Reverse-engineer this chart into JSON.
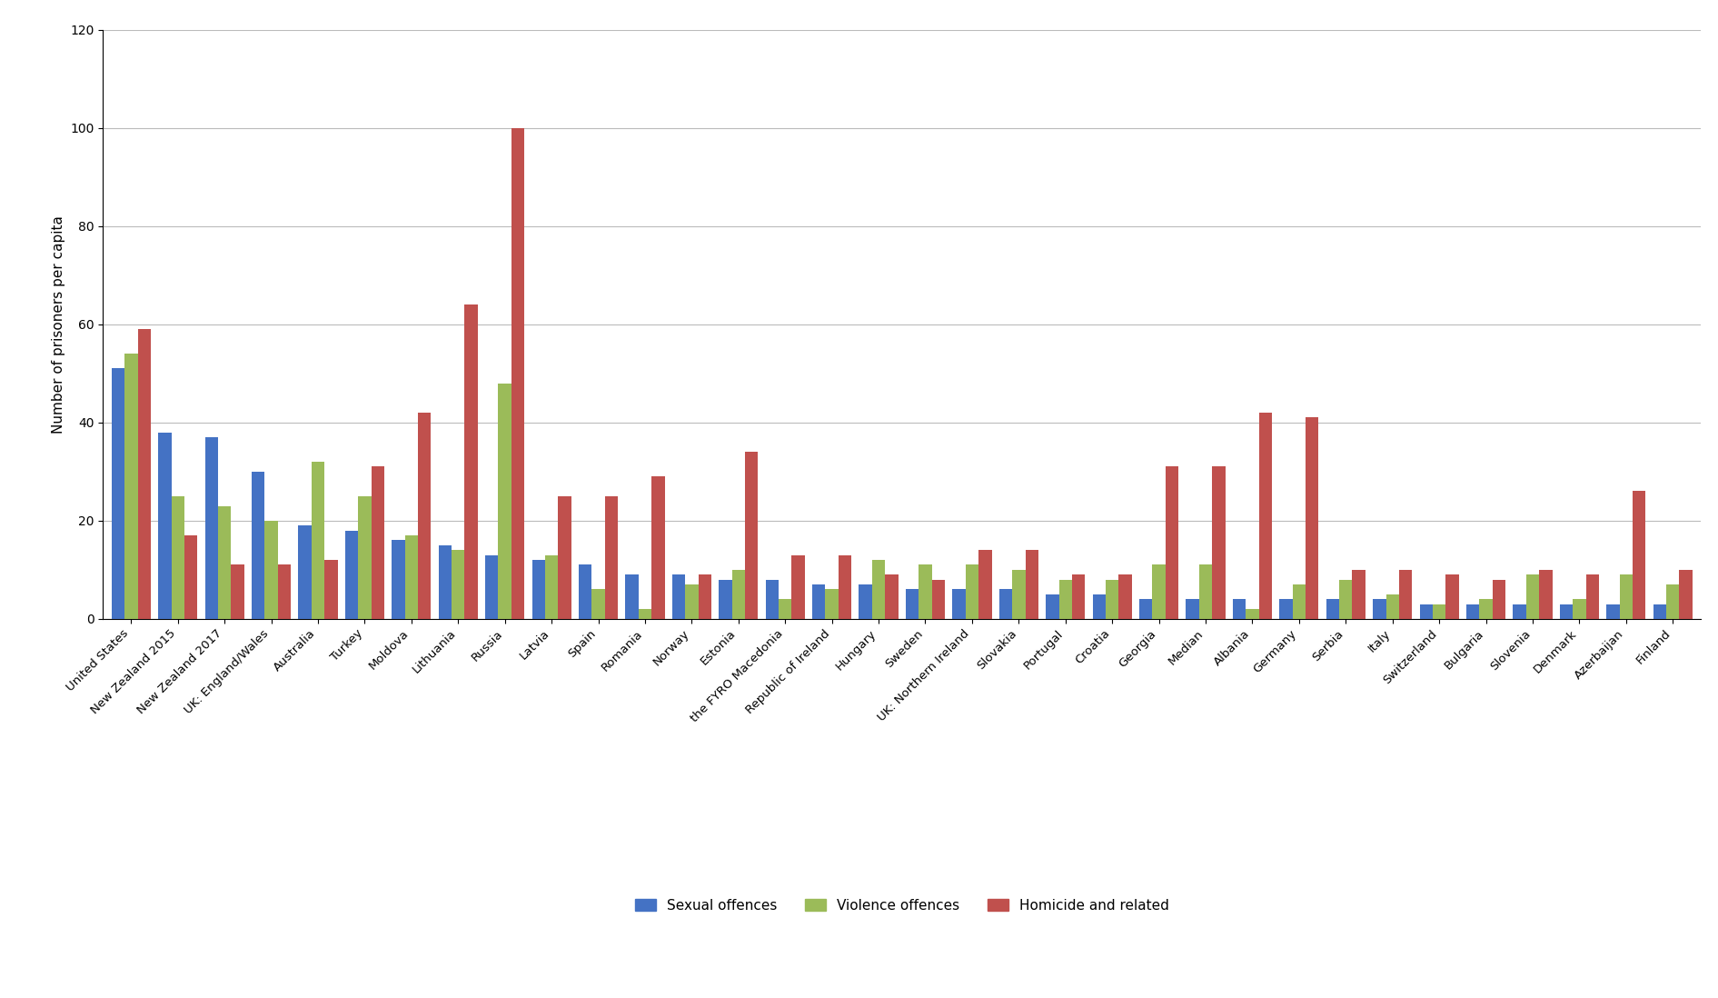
{
  "categories": [
    "United States",
    "New Zealand 2015",
    "New Zealand 2017",
    "UK: England/Wales",
    "Australia",
    "Turkey",
    "Moldova",
    "Lithuania",
    "Russia",
    "Latvia",
    "Spain",
    "Romania",
    "Norway",
    "Estonia",
    "the FYRO Macedonia",
    "Republic of Ireland",
    "Hungary",
    "Sweden",
    "UK: Northern Ireland",
    "Slovakia",
    "Portugal",
    "Croatia",
    "Georgia",
    "Median",
    "Albania",
    "Germany",
    "Serbia",
    "Italy",
    "Switzerland",
    "Bulgaria",
    "Slovenia",
    "Denmark",
    "Azerbaijan",
    "Finland"
  ],
  "sexual_offences": [
    51,
    38,
    37,
    30,
    19,
    18,
    16,
    15,
    13,
    12,
    11,
    9,
    9,
    8,
    8,
    7,
    7,
    6,
    6,
    6,
    5,
    5,
    4,
    4,
    4,
    4,
    4,
    4,
    3,
    3,
    3,
    3,
    3,
    3
  ],
  "violence_offences": [
    54,
    25,
    23,
    20,
    32,
    25,
    17,
    14,
    48,
    13,
    6,
    2,
    7,
    10,
    4,
    6,
    12,
    11,
    11,
    10,
    8,
    8,
    11,
    11,
    2,
    7,
    8,
    5,
    3,
    4,
    9,
    4,
    9,
    7
  ],
  "homicide_related": [
    59,
    17,
    11,
    11,
    12,
    31,
    42,
    64,
    100,
    25,
    25,
    29,
    9,
    34,
    13,
    13,
    9,
    8,
    14,
    14,
    9,
    9,
    31,
    31,
    42,
    41,
    10,
    10,
    9,
    8,
    10,
    9,
    26,
    10
  ],
  "bar_colors": {
    "sexual": "#4472C4",
    "violence": "#9BBB59",
    "homicide": "#C0504D"
  },
  "ylabel": "Number of prisoners per capita",
  "ylim": [
    0,
    120
  ],
  "yticks": [
    0,
    20,
    40,
    60,
    80,
    100,
    120
  ],
  "legend_labels": [
    "Sexual offences",
    "Violence offences",
    "Homicide and related"
  ],
  "background_color": "#FFFFFF",
  "grid_color": "#BBBBBB"
}
